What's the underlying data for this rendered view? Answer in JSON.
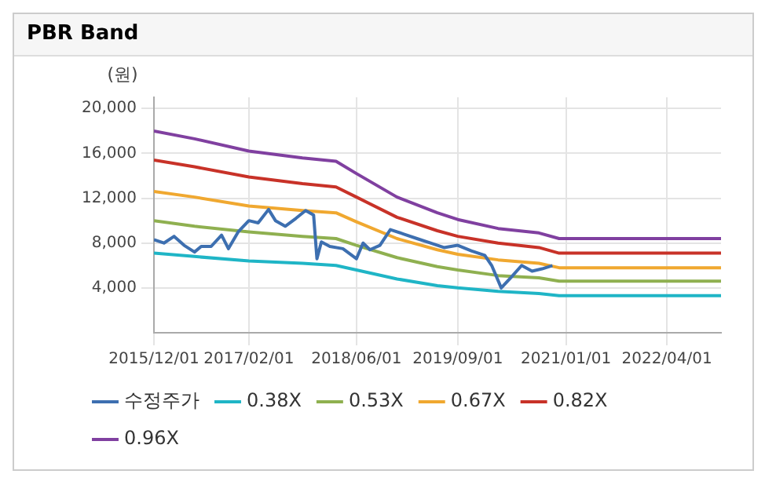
{
  "chart_data": {
    "type": "line",
    "title": "PBR Band",
    "ylabel": "(원)",
    "xlim": [
      "2015-12-01",
      "2022-12-01"
    ],
    "xticks": [
      {
        "value": "2015-12-01",
        "label": "2015/12/01"
      },
      {
        "value": "2017-02-01",
        "label": "2017/02/01"
      },
      {
        "value": "2018-06-01",
        "label": "2018/06/01"
      },
      {
        "value": "2019-09-01",
        "label": "2019/09/01"
      },
      {
        "value": "2021-01-01",
        "label": "2021/01/01"
      },
      {
        "value": "2022-04-01",
        "label": "2022/04/01"
      }
    ],
    "ylim": [
      0,
      21000
    ],
    "yticks": [
      {
        "value": 4000,
        "label": "4,000"
      },
      {
        "value": 8000,
        "label": "8,000"
      },
      {
        "value": 12000,
        "label": "12,000"
      },
      {
        "value": 16000,
        "label": "16,000"
      },
      {
        "value": 20000,
        "label": "20,000"
      }
    ],
    "grid": true,
    "legend": "bottom",
    "marker": "none",
    "line_style": "solid",
    "series": [
      {
        "name": "수정주가",
        "color": "#3d6fb0",
        "x": [
          "2015-12-01",
          "2016-01-15",
          "2016-03-01",
          "2016-04-15",
          "2016-06-01",
          "2016-07-01",
          "2016-08-15",
          "2016-10-01",
          "2016-11-01",
          "2016-12-15",
          "2017-02-01",
          "2017-03-15",
          "2017-05-01",
          "2017-06-01",
          "2017-07-15",
          "2017-09-01",
          "2017-10-15",
          "2017-11-20",
          "2017-12-05",
          "2017-12-25",
          "2018-02-01",
          "2018-04-01",
          "2018-06-01",
          "2018-07-01",
          "2018-08-01",
          "2018-09-15",
          "2018-11-01",
          "2019-01-01",
          "2019-03-01",
          "2019-05-01",
          "2019-07-01",
          "2019-09-01",
          "2019-11-01",
          "2020-01-01",
          "2020-02-01",
          "2020-03-15",
          "2020-05-01",
          "2020-06-15",
          "2020-08-01",
          "2020-09-15",
          "2020-11-01"
        ],
        "values": [
          8300,
          8000,
          8600,
          7800,
          7200,
          7700,
          7700,
          8700,
          7500,
          9000,
          10000,
          9800,
          11000,
          10000,
          9500,
          10200,
          10900,
          10500,
          6600,
          8100,
          7700,
          7500,
          6600,
          8000,
          7400,
          7800,
          9200,
          8800,
          8400,
          8000,
          7600,
          7800,
          7300,
          6900,
          6000,
          4000,
          5000,
          6000,
          5500,
          5700,
          6000
        ]
      },
      {
        "name": "0.38X",
        "color": "#1fb5c6",
        "x": [
          "2015-12-01",
          "2016-06-01",
          "2017-02-01",
          "2017-10-01",
          "2018-03-01",
          "2018-06-01",
          "2018-12-01",
          "2019-06-01",
          "2019-09-01",
          "2020-03-01",
          "2020-09-01",
          "2020-12-01",
          "2021-06-01",
          "2022-01-01",
          "2022-12-01"
        ],
        "values": [
          7100,
          6800,
          6400,
          6200,
          6000,
          5600,
          4800,
          4200,
          4000,
          3700,
          3500,
          3300,
          3300,
          3300,
          3300
        ]
      },
      {
        "name": "0.53X",
        "color": "#8fb050",
        "x": [
          "2015-12-01",
          "2016-06-01",
          "2017-02-01",
          "2017-10-01",
          "2018-03-01",
          "2018-06-01",
          "2018-12-01",
          "2019-06-01",
          "2019-09-01",
          "2020-03-01",
          "2020-09-01",
          "2020-12-01",
          "2021-06-01",
          "2022-01-01",
          "2022-12-01"
        ],
        "values": [
          10000,
          9500,
          9000,
          8600,
          8400,
          7800,
          6700,
          5900,
          5600,
          5100,
          4900,
          4600,
          4600,
          4600,
          4600
        ]
      },
      {
        "name": "0.67X",
        "color": "#f0a830",
        "x": [
          "2015-12-01",
          "2016-06-01",
          "2017-02-01",
          "2017-10-01",
          "2018-03-01",
          "2018-06-01",
          "2018-12-01",
          "2019-06-01",
          "2019-09-01",
          "2020-03-01",
          "2020-09-01",
          "2020-12-01",
          "2021-06-01",
          "2022-01-01",
          "2022-12-01"
        ],
        "values": [
          12600,
          12100,
          11300,
          10900,
          10700,
          9900,
          8400,
          7400,
          7000,
          6500,
          6200,
          5800,
          5800,
          5800,
          5800
        ]
      },
      {
        "name": "0.82X",
        "color": "#c83228",
        "x": [
          "2015-12-01",
          "2016-06-01",
          "2017-02-01",
          "2017-10-01",
          "2018-03-01",
          "2018-06-01",
          "2018-12-01",
          "2019-06-01",
          "2019-09-01",
          "2020-03-01",
          "2020-09-01",
          "2020-12-01",
          "2021-06-01",
          "2022-01-01",
          "2022-12-01"
        ],
        "values": [
          15400,
          14800,
          13900,
          13300,
          13000,
          12100,
          10300,
          9100,
          8600,
          8000,
          7600,
          7100,
          7100,
          7100,
          7100
        ]
      },
      {
        "name": "0.96X",
        "color": "#8040a0",
        "x": [
          "2015-12-01",
          "2016-06-01",
          "2017-02-01",
          "2017-10-01",
          "2018-03-01",
          "2018-06-01",
          "2018-12-01",
          "2019-06-01",
          "2019-09-01",
          "2020-03-01",
          "2020-09-01",
          "2020-12-01",
          "2021-06-01",
          "2022-01-01",
          "2022-12-01"
        ],
        "values": [
          18000,
          17300,
          16200,
          15600,
          15300,
          14200,
          12100,
          10700,
          10100,
          9300,
          8900,
          8400,
          8400,
          8400,
          8400
        ]
      }
    ]
  }
}
